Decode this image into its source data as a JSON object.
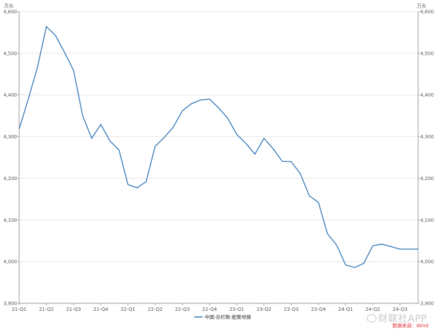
{
  "chart_data": {
    "type": "line",
    "title": "",
    "unit_left": "万头",
    "unit_right": "万头",
    "categories": [
      "21-Q1",
      "21-Q2",
      "21-Q3",
      "21-Q4",
      "22-Q1",
      "22-Q2",
      "22-Q3",
      "22-Q4",
      "23-Q1",
      "23-Q2",
      "23-Q3",
      "23-Q4",
      "24-Q1",
      "24-Q2",
      "24-Q3"
    ],
    "x": [
      0,
      1,
      2,
      3,
      4,
      5,
      6,
      7,
      8,
      9,
      10,
      11,
      12,
      13,
      14,
      15,
      16,
      17,
      18,
      19,
      20,
      21,
      22,
      23,
      24,
      25,
      26,
      27,
      28,
      29,
      30,
      31,
      32,
      33,
      34,
      35,
      36,
      37,
      38,
      39,
      40,
      41,
      42,
      43,
      44
    ],
    "series": [
      {
        "name": "中国:存栏数:能繁母猪",
        "color": "#2e75b6",
        "values": [
          4318,
          4390,
          4465,
          4564,
          4543,
          4502,
          4459,
          4350,
          4296,
          4329,
          4290,
          4268,
          4185,
          4177,
          4192,
          4277,
          4298,
          4323,
          4362,
          4379,
          4388,
          4390,
          4369,
          4344,
          4305,
          4284,
          4258,
          4296,
          4271,
          4241,
          4240,
          4211,
          4158,
          4142,
          4067,
          4040,
          3992,
          3986,
          3996,
          4038,
          4042,
          4036,
          4030,
          4030,
          4030
        ]
      }
    ],
    "ylim": [
      3900,
      4600
    ],
    "yticks": [
      "3,900",
      "4,000",
      "4,100",
      "4,200",
      "4,300",
      "4,400",
      "4,500",
      "4,600"
    ],
    "grid": true,
    "legend_position": "bottom-center"
  },
  "watermark": {
    "brand": "财联社APP",
    "source": "数据来源：Wind"
  },
  "colors": {
    "line": "#2e75b6",
    "grid": "#e6e6e6",
    "axis": "#999999",
    "source_text": "#e0303a"
  }
}
